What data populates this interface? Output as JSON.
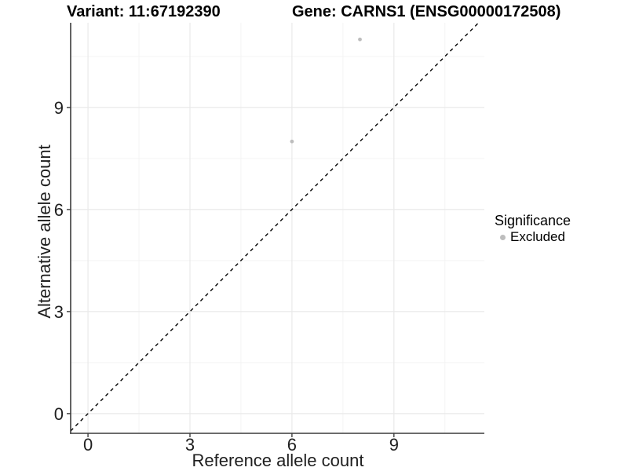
{
  "chart_data": {
    "type": "scatter",
    "title_left": "Variant: 11:67192390",
    "title_right": "Gene: CARNS1 (ENSG00000172508)",
    "xlabel": "Reference allele count",
    "ylabel": "Alternative allele count",
    "xlim": [
      -0.51,
      11.66
    ],
    "ylim": [
      -0.58,
      11.49
    ],
    "x_ticks": [
      0,
      3,
      6,
      9
    ],
    "y_ticks": [
      0,
      3,
      6,
      9
    ],
    "x_minor_ticks": [
      1.5,
      4.5,
      7.5,
      10.5
    ],
    "y_minor_ticks": [
      1.5,
      4.5,
      7.5,
      10.5
    ],
    "grid": "major+minor",
    "legend_position": "right",
    "legend_title": "Significance",
    "series": [
      {
        "name": "Excluded",
        "color": "#bdbdbd",
        "points": [
          [
            6,
            8
          ],
          [
            8,
            11
          ]
        ]
      }
    ],
    "reference_line": {
      "slope": 1,
      "intercept": 0,
      "style": "dashed",
      "color": "#000000"
    }
  },
  "colors": {
    "background": "#ffffff",
    "grid_major": "#e9e9e9",
    "grid_minor": "#f3f3f3",
    "axis": "#3c3c3c",
    "tick_text": "#1f1f1f",
    "point": "#bdbdbd",
    "refline": "#000000"
  }
}
